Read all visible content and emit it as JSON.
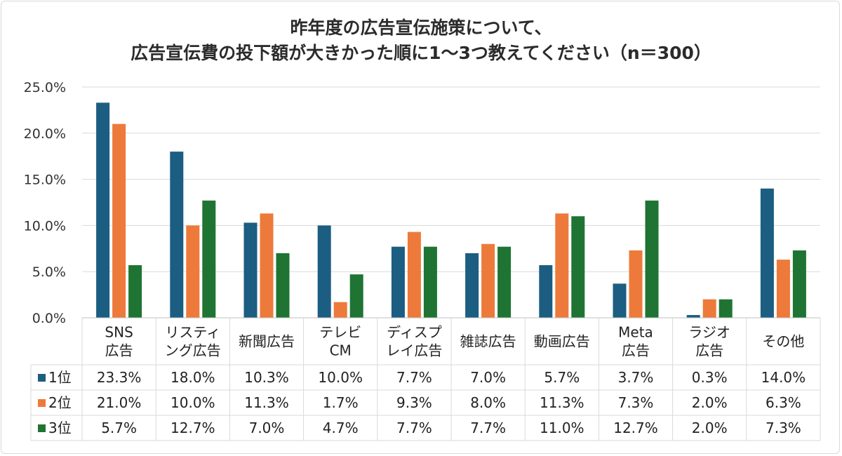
{
  "chart_data": {
    "type": "bar",
    "title": "昨年度の広告宣伝施策について、",
    "subtitle": "広告宣伝費の投下額が大きかった順に1〜3つ教えてください（n＝300）",
    "xlabel": "",
    "ylabel": "",
    "ylim": [
      0,
      25
    ],
    "ytick_labels": [
      "0.0%",
      "5.0%",
      "10.0%",
      "15.0%",
      "20.0%",
      "25.0%"
    ],
    "grid": true,
    "legend_placement": "data-table",
    "categories": [
      [
        "SNS",
        "広告"
      ],
      [
        "リスティ",
        "ング広告"
      ],
      [
        "新聞広告"
      ],
      [
        "テレビ",
        "CM"
      ],
      [
        "ディスプ",
        "レイ広告"
      ],
      [
        "雑誌広告"
      ],
      [
        "動画広告"
      ],
      [
        "Meta",
        "広告"
      ],
      [
        "ラジオ",
        "広告"
      ],
      [
        "その他"
      ]
    ],
    "series": [
      {
        "name": "1位",
        "color": "#1c5d82",
        "values": [
          23.3,
          18.0,
          10.3,
          10.0,
          7.7,
          7.0,
          5.7,
          3.7,
          0.3,
          14.0
        ],
        "labels": [
          "23.3%",
          "18.0%",
          "10.3%",
          "10.0%",
          "7.7%",
          "7.0%",
          "5.7%",
          "3.7%",
          "0.3%",
          "14.0%"
        ]
      },
      {
        "name": "2位",
        "color": "#ed7a3a",
        "values": [
          21.0,
          10.0,
          11.3,
          1.7,
          9.3,
          8.0,
          11.3,
          7.3,
          2.0,
          6.3
        ],
        "labels": [
          "21.0%",
          "10.0%",
          "11.3%",
          "1.7%",
          "9.3%",
          "8.0%",
          "11.3%",
          "7.3%",
          "2.0%",
          "6.3%"
        ]
      },
      {
        "name": "3位",
        "color": "#1f7433",
        "values": [
          5.7,
          12.7,
          7.0,
          4.7,
          7.7,
          7.7,
          11.0,
          12.7,
          2.0,
          7.3
        ],
        "labels": [
          "5.7%",
          "12.7%",
          "7.0%",
          "4.7%",
          "7.7%",
          "7.7%",
          "11.0%",
          "12.7%",
          "2.0%",
          "7.3%"
        ]
      }
    ]
  }
}
